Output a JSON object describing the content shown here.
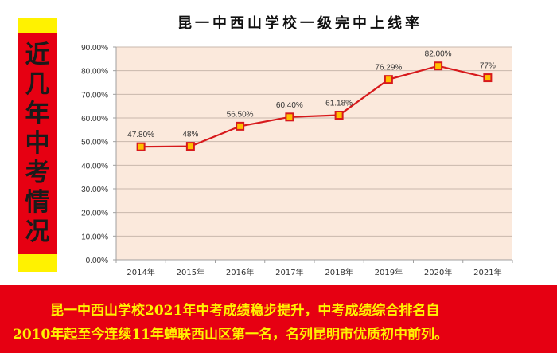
{
  "side_banner": {
    "chars": [
      "近",
      "几",
      "年",
      "中",
      "考",
      "情",
      "况"
    ],
    "colors": {
      "cap": "#fff200",
      "body": "#e60012",
      "text": "#1a1a1a"
    }
  },
  "chart": {
    "title": "昆一中西山学校一级完中上线率"
  },
  "bottom_banner": {
    "line1": "昆一中西山学校2021年中考成绩稳步提升，中考成绩综合排名自",
    "line2": "2010年起至今连续11年蝉联西山区第一名，名列昆明市优质初中前列。",
    "colors": {
      "bg": "#e60012",
      "text": "#fff200"
    }
  },
  "chart_data": {
    "type": "line",
    "title": "昆一中西山学校一级完中上线率",
    "xlabel": "",
    "ylabel": "",
    "categories": [
      "2014年",
      "2015年",
      "2016年",
      "2017年",
      "2018年",
      "2019年",
      "2020年",
      "2021年"
    ],
    "series": [
      {
        "name": "上线率",
        "values": [
          47.8,
          48.0,
          56.5,
          60.4,
          61.18,
          76.29,
          82.0,
          77.0
        ],
        "labels": [
          "47.80%",
          "48%",
          "56.50%",
          "60.40%",
          "61.18%",
          "76.29%",
          "82.00%",
          "77%"
        ],
        "line_color": "#d7191c",
        "marker_fill": "#ffc000",
        "marker_edge": "#d7191c",
        "marker": "square"
      }
    ],
    "yticks": [
      "0.00%",
      "10.00%",
      "20.00%",
      "30.00%",
      "40.00%",
      "50.00%",
      "60.00%",
      "70.00%",
      "80.00%",
      "90.00%"
    ],
    "ylim": [
      0,
      90
    ],
    "grid": true,
    "plot_bg": "#fbe9dc",
    "legend": "none"
  }
}
